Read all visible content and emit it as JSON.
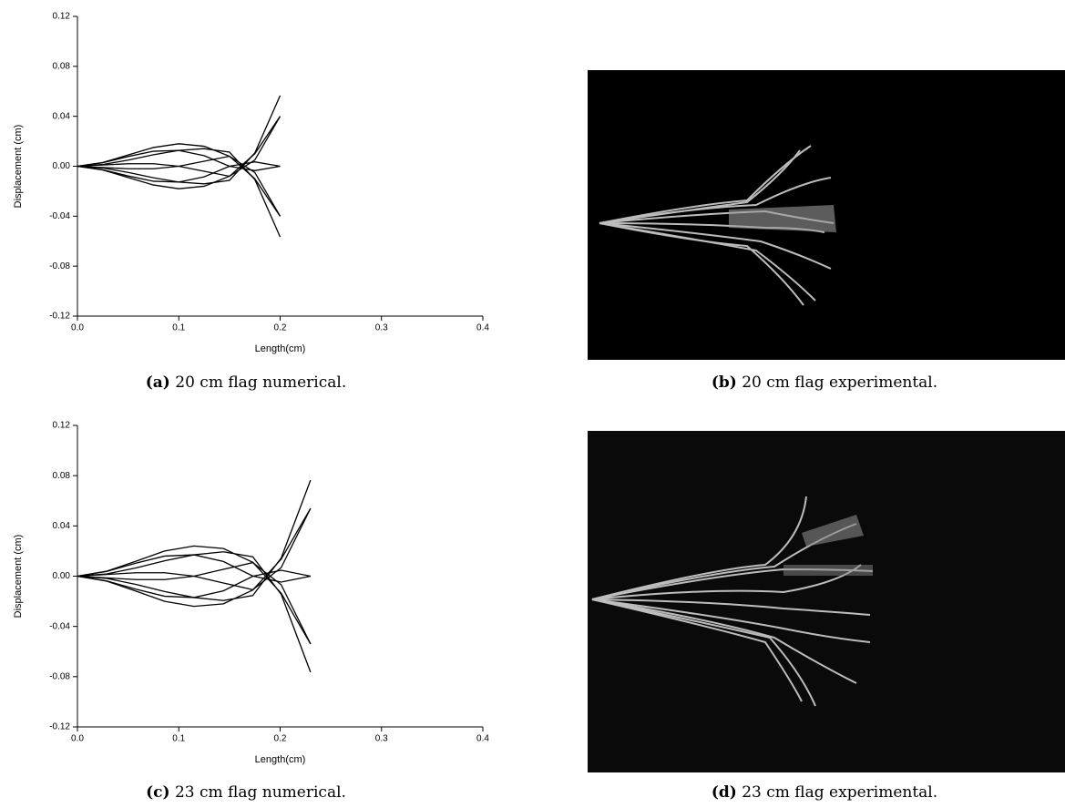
{
  "chart_data": [
    {
      "type": "line",
      "xlabel": "Length(cm)",
      "ylabel": "Displacement (cm)",
      "color": "#000000",
      "xlim": [
        0,
        0.4
      ],
      "ylim": [
        -0.12,
        0.12
      ],
      "xticks": [
        {
          "value": 0,
          "label": "0.0"
        },
        0.1,
        0.2,
        0.3,
        0.4
      ],
      "yticks": [
        -0.12,
        -0.08,
        -0.04,
        {
          "value": 0,
          "label": "0.00"
        },
        0.04,
        0.08,
        0.12
      ],
      "x": [
        0,
        0.025,
        0.05,
        0.075,
        0.1,
        0.125,
        0.15,
        0.175,
        0.2
      ],
      "series": [
        {
          "values": [
            0,
            0.003,
            0.009,
            0.015,
            0.018,
            0.016,
            0.008,
            -0.01,
            -0.04
          ]
        },
        {
          "values": [
            0,
            0.0028,
            0.0078,
            0.012,
            0.0127,
            0.0085,
            0,
            -0.0035,
            0
          ]
        },
        {
          "values": [
            0,
            0.001,
            0.002,
            0.002,
            0,
            -0.004,
            -0.008,
            0.005,
            0.04
          ]
        },
        {
          "values": [
            0,
            -0.0014,
            -0.0049,
            -0.0092,
            -0.0127,
            -0.0141,
            -0.0113,
            0.0106,
            0.0566
          ]
        },
        {
          "values": [
            0,
            -0.003,
            -0.009,
            -0.015,
            -0.018,
            -0.016,
            -0.008,
            0.01,
            0.04
          ]
        },
        {
          "values": [
            0,
            -0.0028,
            -0.0078,
            -0.012,
            -0.0127,
            -0.0085,
            0,
            0.0035,
            0
          ]
        },
        {
          "values": [
            0,
            -0.001,
            -0.002,
            -0.002,
            0,
            0.004,
            0.008,
            -0.005,
            -0.04
          ]
        },
        {
          "values": [
            0,
            0.0014,
            0.0049,
            0.0092,
            0.0127,
            0.0141,
            0.0113,
            -0.0106,
            -0.0566
          ]
        }
      ]
    },
    {
      "type": "line",
      "xlabel": "Length(cm)",
      "ylabel": "Displacement (cm)",
      "color": "#000000",
      "xlim": [
        0,
        0.4
      ],
      "ylim": [
        -0.12,
        0.12
      ],
      "xticks": [
        {
          "value": 0,
          "label": "0.0"
        },
        0.1,
        0.2,
        0.3,
        0.4
      ],
      "yticks": [
        -0.12,
        -0.08,
        -0.04,
        {
          "value": 0,
          "label": "0.00"
        },
        0.04,
        0.08,
        0.12
      ],
      "x": [
        0,
        0.029,
        0.058,
        0.086,
        0.115,
        0.144,
        0.173,
        0.201,
        0.23
      ],
      "series": [
        {
          "values": [
            0,
            0.004,
            0.012,
            0.02,
            0.024,
            0.022,
            0.011,
            -0.0135,
            -0.054
          ]
        },
        {
          "values": [
            0,
            0.0038,
            0.0104,
            0.016,
            0.017,
            0.0117,
            0.0001,
            -0.0047,
            0
          ]
        },
        {
          "values": [
            0,
            0.0014,
            0.0027,
            0.0027,
            0,
            -0.0054,
            -0.0108,
            0.0068,
            0.054
          ]
        },
        {
          "values": [
            0,
            -0.0018,
            -0.0066,
            -0.0122,
            -0.017,
            -0.0194,
            -0.0154,
            0.0144,
            0.0764
          ]
        },
        {
          "values": [
            0,
            -0.004,
            -0.012,
            -0.02,
            -0.024,
            -0.022,
            -0.011,
            0.0135,
            0.054
          ]
        },
        {
          "values": [
            0,
            -0.0038,
            -0.0104,
            -0.016,
            -0.017,
            -0.0117,
            -0.0001,
            0.0047,
            0
          ]
        },
        {
          "values": [
            0,
            -0.0014,
            -0.0027,
            -0.0027,
            0,
            0.0054,
            0.0108,
            -0.0068,
            -0.054
          ]
        },
        {
          "values": [
            0,
            0.0018,
            0.0066,
            0.0122,
            0.017,
            0.0194,
            0.0154,
            -0.0144,
            -0.0764
          ]
        }
      ]
    }
  ],
  "captions": [
    {
      "label": "(a)",
      "text": "20 cm flag numerical."
    },
    {
      "label": "(b)",
      "text": "20 cm flag experimental."
    },
    {
      "label": "(c)",
      "text": "23 cm flag numerical."
    },
    {
      "label": "(d)",
      "text": "23 cm flag experimental."
    }
  ]
}
